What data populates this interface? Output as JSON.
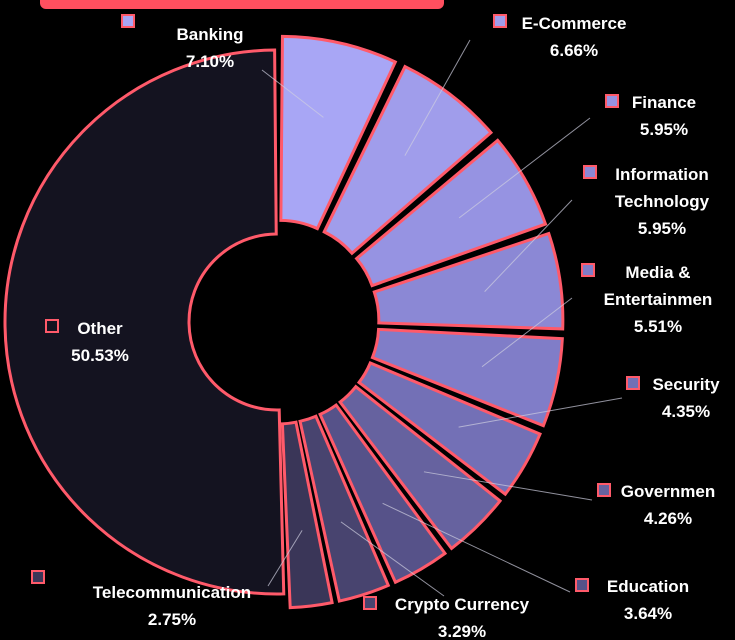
{
  "chart_data": {
    "type": "pie",
    "style": "exploded-donut",
    "slices": [
      {
        "label": "Banking",
        "value": 7.1,
        "value_label": "7.10%",
        "color": "#a8a6f5"
      },
      {
        "label": "E-Commerce",
        "value": 6.66,
        "value_label": "6.66%",
        "color": "#a09deb"
      },
      {
        "label": "Finance",
        "value": 5.95,
        "value_label": "5.95%",
        "color": "#9693e2"
      },
      {
        "label": "Information Technology",
        "value": 5.95,
        "value_label": "5.95%",
        "color": "#8b88d5"
      },
      {
        "label": "Media & Entertainment",
        "value": 5.51,
        "value_label": "5.51%",
        "color": "#807dc8"
      },
      {
        "label": "Security",
        "value": 4.35,
        "value_label": "4.35%",
        "color": "#7370b6"
      },
      {
        "label": "Government",
        "value": 4.26,
        "value_label": "4.26%",
        "color": "#66629f"
      },
      {
        "label": "Education",
        "value": 3.64,
        "value_label": "3.64%",
        "color": "#565289"
      },
      {
        "label": "Crypto Currency",
        "value": 3.29,
        "value_label": "3.29%",
        "color": "#48446f"
      },
      {
        "label": "Telecommunication",
        "value": 2.75,
        "value_label": "2.75%",
        "color": "#3a3658"
      },
      {
        "label": "Other",
        "value": 50.53,
        "value_label": "50.53%",
        "color": "#141320"
      }
    ],
    "slice_stroke_color": "#ff5a6a",
    "background_color": "#000000",
    "label_color": "#ffffff"
  }
}
